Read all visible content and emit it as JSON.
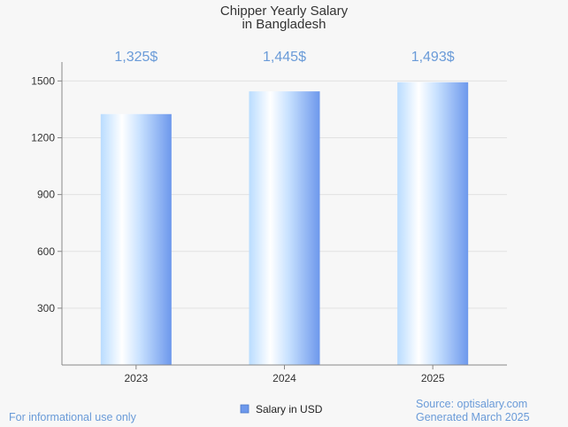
{
  "chart_data": {
    "type": "bar",
    "title_lines": [
      "Chipper Yearly Salary",
      "in Bangladesh"
    ],
    "categories": [
      "2023",
      "2024",
      "2025"
    ],
    "values": [
      1325,
      1445,
      1493
    ],
    "value_labels": [
      "1,325$",
      "1,445$",
      "1,493$"
    ],
    "y_ticks": [
      300,
      600,
      900,
      1200,
      1500
    ],
    "ylim": [
      0,
      1600
    ],
    "legend": "Salary in USD",
    "grid": true
  },
  "footer": {
    "left": "For informational use only",
    "source": "Source: optisalary.com",
    "generated": "Generated March 2025"
  },
  "colors": {
    "bar_light": "#ffffff",
    "bar_mid": "#b9dcff",
    "bar_dark": "#6d98ec",
    "accent": "#6a9bd8",
    "grid": "#e2e2e2",
    "axis": "#888888"
  }
}
